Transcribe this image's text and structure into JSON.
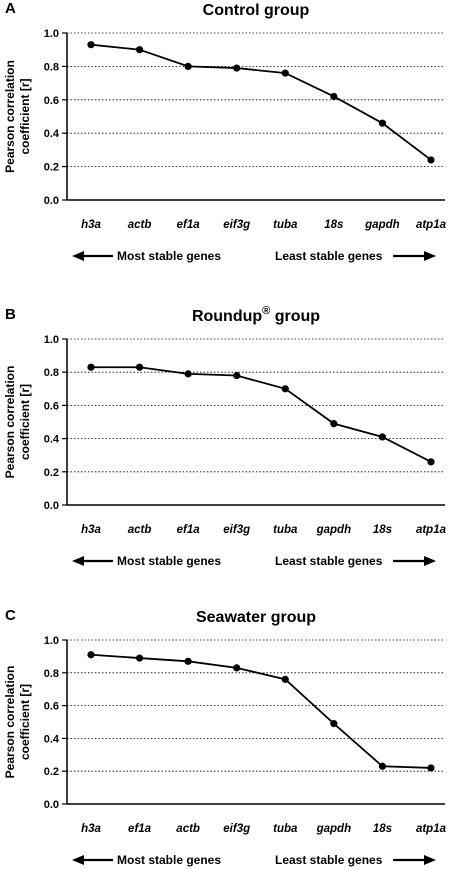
{
  "chart_data": [
    {
      "type": "line",
      "panel": "A",
      "title": "Control group",
      "title_sup": "",
      "ylabel": [
        "Pearson correlation",
        "coefficient [r]"
      ],
      "xlabel": "",
      "ylim": [
        0,
        1.0
      ],
      "yticks": [
        "0.0",
        "0.2",
        "0.4",
        "0.6",
        "0.8",
        "1.0"
      ],
      "grid": "horizontal dotted",
      "categories": [
        "h3a",
        "actb",
        "ef1a",
        "eif3g",
        "tuba",
        "18s",
        "gapdh",
        "atp1a"
      ],
      "values": [
        0.93,
        0.9,
        0.8,
        0.79,
        0.76,
        0.62,
        0.46,
        0.24
      ],
      "left_arrow_label": "Most stable genes",
      "right_arrow_label": "Least stable genes"
    },
    {
      "type": "line",
      "panel": "B",
      "title": "Roundup",
      "title_sup": "®",
      "title_suffix": " group",
      "ylabel": [
        "Pearson correlation",
        "coefficient [r]"
      ],
      "xlabel": "",
      "ylim": [
        0,
        1.0
      ],
      "yticks": [
        "0.0",
        "0.2",
        "0.4",
        "0.6",
        "0.8",
        "1.0"
      ],
      "grid": "horizontal dotted",
      "categories": [
        "h3a",
        "actb",
        "ef1a",
        "eif3g",
        "tuba",
        "gapdh",
        "18s",
        "atp1a"
      ],
      "values": [
        0.83,
        0.83,
        0.79,
        0.78,
        0.7,
        0.49,
        0.41,
        0.26
      ],
      "left_arrow_label": "Most stable genes",
      "right_arrow_label": "Least stable genes"
    },
    {
      "type": "line",
      "panel": "C",
      "title": "Seawater group",
      "title_sup": "",
      "ylabel": [
        "Pearson correlation",
        "coefficient [r]"
      ],
      "xlabel": "",
      "ylim": [
        0,
        1.0
      ],
      "yticks": [
        "0.0",
        "0.2",
        "0.4",
        "0.6",
        "0.8",
        "1.0"
      ],
      "grid": "horizontal dotted",
      "categories": [
        "h3a",
        "ef1a",
        "actb",
        "eif3g",
        "tuba",
        "gapdh",
        "18s",
        "atp1a"
      ],
      "values": [
        0.91,
        0.89,
        0.87,
        0.83,
        0.76,
        0.49,
        0.23,
        0.22
      ],
      "left_arrow_label": "Most stable genes",
      "right_arrow_label": "Least stable genes"
    }
  ]
}
